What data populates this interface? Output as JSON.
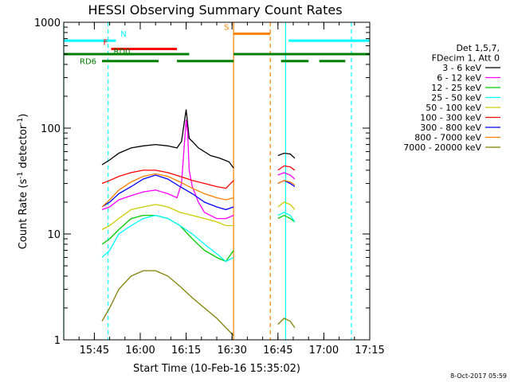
{
  "chart_data": {
    "type": "line",
    "title": "HESSI Observing Summary Count Rates",
    "xlabel": "Start Time (10-Feb-16 15:35:02)",
    "ylabel": "Count Rate (s",
    "ylabel_sup1": "-1",
    "ylabel_mid": " detector",
    "ylabel_sup2": "-1",
    "ylabel_end": ")",
    "x_unit": "minutes after 15:35:02",
    "xlim": [
      0,
      100
    ],
    "yscale": "log",
    "ylim": [
      1,
      1000
    ],
    "x_ticks": [
      {
        "x": 10,
        "label": "15:45"
      },
      {
        "x": 25,
        "label": "16:00"
      },
      {
        "x": 40,
        "label": "16:15"
      },
      {
        "x": 55,
        "label": "16:30"
      },
      {
        "x": 70,
        "label": "16:45"
      },
      {
        "x": 85,
        "label": "17:00"
      },
      {
        "x": 100,
        "label": "17:15"
      }
    ],
    "y_ticks": [
      {
        "y": 1,
        "label": "1"
      },
      {
        "y": 10,
        "label": "10"
      },
      {
        "y": 100,
        "label": "100"
      },
      {
        "y": 1000,
        "label": "1000"
      }
    ],
    "legend_header": [
      "Det 1,5,7,",
      "FDecim 1, Att 0"
    ],
    "series": [
      {
        "name": "3 - 6 keV",
        "color": "#000000",
        "x": [
          12.5,
          15,
          18,
          22,
          26,
          30,
          34,
          37,
          38.5,
          40,
          41,
          42,
          44,
          48,
          51,
          54,
          55.5,
          70,
          72,
          74,
          75.5
        ],
        "y": [
          45,
          50,
          58,
          65,
          68,
          70,
          68,
          65,
          75,
          150,
          80,
          75,
          65,
          55,
          52,
          48,
          42,
          55,
          58,
          57,
          52
        ]
      },
      {
        "name": "6 - 12 keV",
        "color": "#ff00ff",
        "x": [
          12.5,
          15,
          18,
          22,
          26,
          30,
          34,
          37,
          38.5,
          40,
          40.5,
          41,
          42,
          44,
          46,
          50,
          53,
          55.5,
          70,
          72,
          74,
          75.5
        ],
        "y": [
          17,
          18,
          21,
          23,
          25,
          26,
          24,
          22,
          30,
          120,
          90,
          40,
          28,
          20,
          16,
          14,
          14,
          15,
          36,
          38,
          36,
          33
        ]
      },
      {
        "name": "12 - 25 keV",
        "color": "#00cc00",
        "x": [
          12.5,
          15,
          18,
          22,
          26,
          30,
          34,
          38,
          42,
          46,
          50,
          53,
          55.5,
          70,
          72,
          74,
          75.5
        ],
        "y": [
          8,
          9,
          11,
          14,
          15,
          15,
          14,
          12,
          9,
          7,
          6,
          5.5,
          7,
          14,
          15,
          14,
          13
        ]
      },
      {
        "name": "25 - 50 keV",
        "color": "#00ffff",
        "x": [
          12.5,
          15,
          18,
          22,
          26,
          30,
          34,
          38,
          42,
          46,
          50,
          53,
          55.5,
          70,
          72,
          74,
          75.5
        ],
        "y": [
          6,
          7,
          10,
          12,
          14,
          15,
          14,
          12,
          10,
          8,
          6.5,
          5.5,
          6,
          15,
          16,
          15,
          13
        ]
      },
      {
        "name": "50 - 100 keV",
        "color": "#cccc00",
        "x": [
          12.5,
          15,
          18,
          22,
          26,
          30,
          34,
          38,
          42,
          46,
          50,
          53,
          55.5,
          70,
          72,
          74,
          75.5
        ],
        "y": [
          11,
          12,
          14,
          17,
          18,
          19,
          18,
          16,
          15,
          14,
          13,
          12,
          12,
          18,
          20,
          19,
          17
        ]
      },
      {
        "name": "100 - 300 keV",
        "color": "#ff0000",
        "x": [
          12.5,
          15,
          18,
          22,
          26,
          30,
          34,
          38,
          42,
          46,
          50,
          53,
          55.5,
          70,
          72,
          74,
          75.5
        ],
        "y": [
          30,
          32,
          35,
          38,
          40,
          40,
          38,
          35,
          32,
          30,
          28,
          27,
          32,
          40,
          44,
          43,
          40
        ]
      },
      {
        "name": "300 - 800 keV",
        "color": "#0000ff",
        "x": [
          12.5,
          15,
          18,
          22,
          26,
          30,
          34,
          38,
          42,
          46,
          50,
          53,
          55.5,
          70,
          72,
          74,
          75.5
        ],
        "y": [
          18,
          20,
          24,
          28,
          33,
          36,
          33,
          28,
          24,
          20,
          18,
          17,
          18,
          30,
          32,
          30,
          28
        ]
      },
      {
        "name": "800 - 7000 keV",
        "color": "#ff8000",
        "x": [
          12.5,
          15,
          18,
          22,
          26,
          30,
          34,
          38,
          42,
          46,
          50,
          53,
          55.5,
          70,
          72,
          74,
          75.5
        ],
        "y": [
          18,
          21,
          26,
          31,
          35,
          37,
          35,
          31,
          27,
          24,
          22,
          21,
          22,
          30,
          32,
          31,
          29
        ]
      },
      {
        "name": "7000 - 20000 keV",
        "color": "#808000",
        "x": [
          12.5,
          15,
          18,
          22,
          26,
          30,
          34,
          38,
          42,
          46,
          50,
          53,
          55.5,
          70,
          72,
          74,
          75.5
        ],
        "y": [
          1.5,
          2,
          3,
          4,
          4.5,
          4.5,
          4,
          3.2,
          2.5,
          2,
          1.6,
          1.3,
          1.1,
          1.4,
          1.6,
          1.5,
          1.3
        ]
      }
    ],
    "flag_lines": [
      {
        "label": "N",
        "color": "#00ffff",
        "segments": [
          [
            0,
            17
          ],
          [
            73.5,
            100
          ]
        ],
        "y": 670
      },
      {
        "label": "S",
        "color": "#ff8000",
        "segments": [
          [
            55.5,
            67.5
          ]
        ],
        "y": 780
      },
      {
        "label": "F",
        "color": "#ff0000",
        "segments": [
          [
            15.5,
            37
          ]
        ],
        "y": 560
      },
      {
        "label": "RD0",
        "color": "#008000",
        "segments": [
          [
            0,
            41
          ],
          [
            55.5,
            100
          ]
        ],
        "y": 500
      },
      {
        "label": "RD6",
        "color": "#008000",
        "segments": [
          [
            12.5,
            31
          ],
          [
            37,
            55.5
          ],
          [
            71,
            80
          ],
          [
            83.5,
            92
          ]
        ],
        "y": 430
      }
    ],
    "vertical_markers": [
      {
        "x": 0,
        "color": "#00ffff",
        "style": "solid"
      },
      {
        "x": 14.5,
        "color": "#00ffff",
        "style": "dashed"
      },
      {
        "x": 55.5,
        "color": "#ff8000",
        "style": "solid"
      },
      {
        "x": 67.5,
        "color": "#ff8000",
        "style": "dashed"
      },
      {
        "x": 72.5,
        "color": "#00ffff",
        "style": "solid"
      },
      {
        "x": 94,
        "color": "#00ffff",
        "style": "dashed"
      }
    ],
    "grid": false,
    "legend_position": "right"
  },
  "footer": {
    "timestamp": "8-Oct-2017 05:59"
  }
}
